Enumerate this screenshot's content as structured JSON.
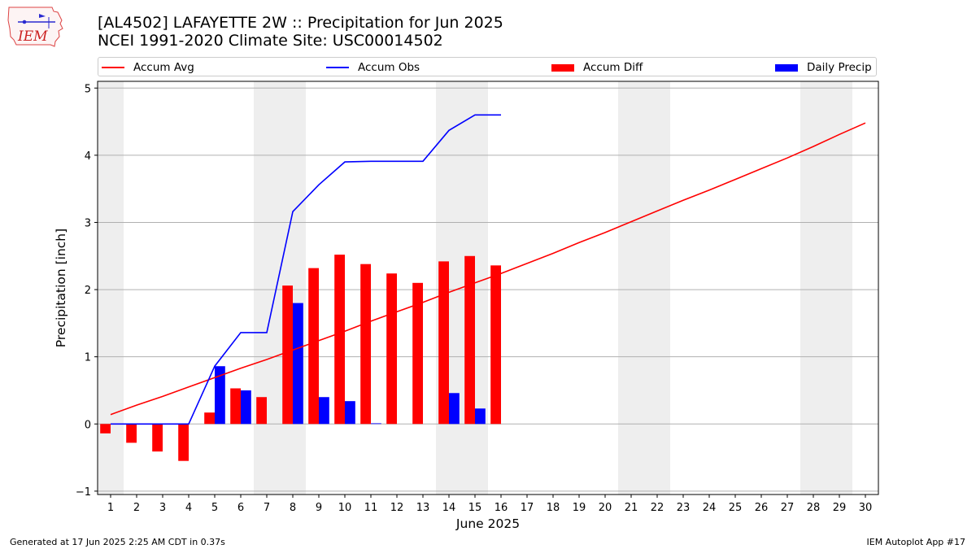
{
  "header": {
    "title_line1": "[AL4502] LAFAYETTE 2W :: Precipitation for Jun 2025",
    "title_line2": "NCEI 1991-2020 Climate Site: USC00014502"
  },
  "logo": {
    "text": "IEM"
  },
  "footer": {
    "left": "Generated at 17 Jun 2025 2:25 AM CDT in 0.37s",
    "right": "IEM Autoplot App #17"
  },
  "colors": {
    "accum_avg": "#ff0000",
    "accum_obs": "#0000ff",
    "accum_diff": "#ff0000",
    "daily_precip": "#0000ff",
    "weekend_shade": "#eeeeee",
    "grid": "#b0b0b0"
  },
  "chart_data": {
    "type": "bar",
    "xlabel": "June 2025",
    "ylabel": "Precipitation [inch]",
    "xlim": [
      0.5,
      30.5
    ],
    "ylim": [
      -1.05,
      5.1
    ],
    "x_ticks": [
      1,
      2,
      3,
      4,
      5,
      6,
      7,
      8,
      9,
      10,
      11,
      12,
      13,
      14,
      15,
      16,
      17,
      18,
      19,
      20,
      21,
      22,
      23,
      24,
      25,
      26,
      27,
      28,
      29,
      30
    ],
    "y_ticks": [
      -1,
      0,
      1,
      2,
      3,
      4,
      5
    ],
    "grid": "horizontal",
    "weekend_days": [
      1,
      7,
      8,
      14,
      15,
      21,
      22,
      28,
      29
    ],
    "legend": {
      "placement": "top",
      "entries": [
        "Accum Avg",
        "Accum Obs",
        "Accum Diff",
        "Daily Precip"
      ]
    },
    "series": [
      {
        "name": "Accum Avg",
        "kind": "line",
        "x": [
          1,
          2,
          3,
          4,
          5,
          6,
          7,
          8,
          9,
          10,
          11,
          12,
          13,
          14,
          15,
          16,
          17,
          18,
          19,
          20,
          21,
          22,
          23,
          24,
          25,
          26,
          27,
          28,
          29,
          30
        ],
        "values": [
          0.14,
          0.28,
          0.41,
          0.55,
          0.69,
          0.83,
          0.96,
          1.1,
          1.24,
          1.38,
          1.53,
          1.67,
          1.81,
          1.96,
          2.1,
          2.24,
          2.39,
          2.54,
          2.7,
          2.85,
          3.01,
          3.17,
          3.33,
          3.48,
          3.64,
          3.8,
          3.96,
          4.13,
          4.31,
          4.48
        ]
      },
      {
        "name": "Accum Obs",
        "kind": "line",
        "x": [
          1,
          2,
          3,
          4,
          5,
          6,
          7,
          8,
          9,
          10,
          11,
          12,
          13,
          14,
          15,
          16
        ],
        "values": [
          0.0,
          0.0,
          0.0,
          0.0,
          0.86,
          1.36,
          1.36,
          3.16,
          3.56,
          3.9,
          3.91,
          3.91,
          3.91,
          4.37,
          4.6,
          4.6
        ]
      },
      {
        "name": "Accum Diff",
        "kind": "bar",
        "x": [
          1,
          2,
          3,
          4,
          5,
          6,
          7,
          8,
          9,
          10,
          11,
          12,
          13,
          14,
          15,
          16
        ],
        "values": [
          -0.14,
          -0.28,
          -0.41,
          -0.55,
          0.17,
          0.53,
          0.4,
          2.06,
          2.32,
          2.52,
          2.38,
          2.24,
          2.1,
          2.42,
          2.5,
          2.36
        ]
      },
      {
        "name": "Daily Precip",
        "kind": "bar",
        "x": [
          1,
          2,
          3,
          4,
          5,
          6,
          7,
          8,
          9,
          10,
          11,
          12,
          13,
          14,
          15,
          16
        ],
        "values": [
          0,
          0,
          0,
          0,
          0.86,
          0.5,
          0,
          1.8,
          0.4,
          0.34,
          0.01,
          0,
          0,
          0.46,
          0.23,
          0
        ]
      }
    ]
  }
}
